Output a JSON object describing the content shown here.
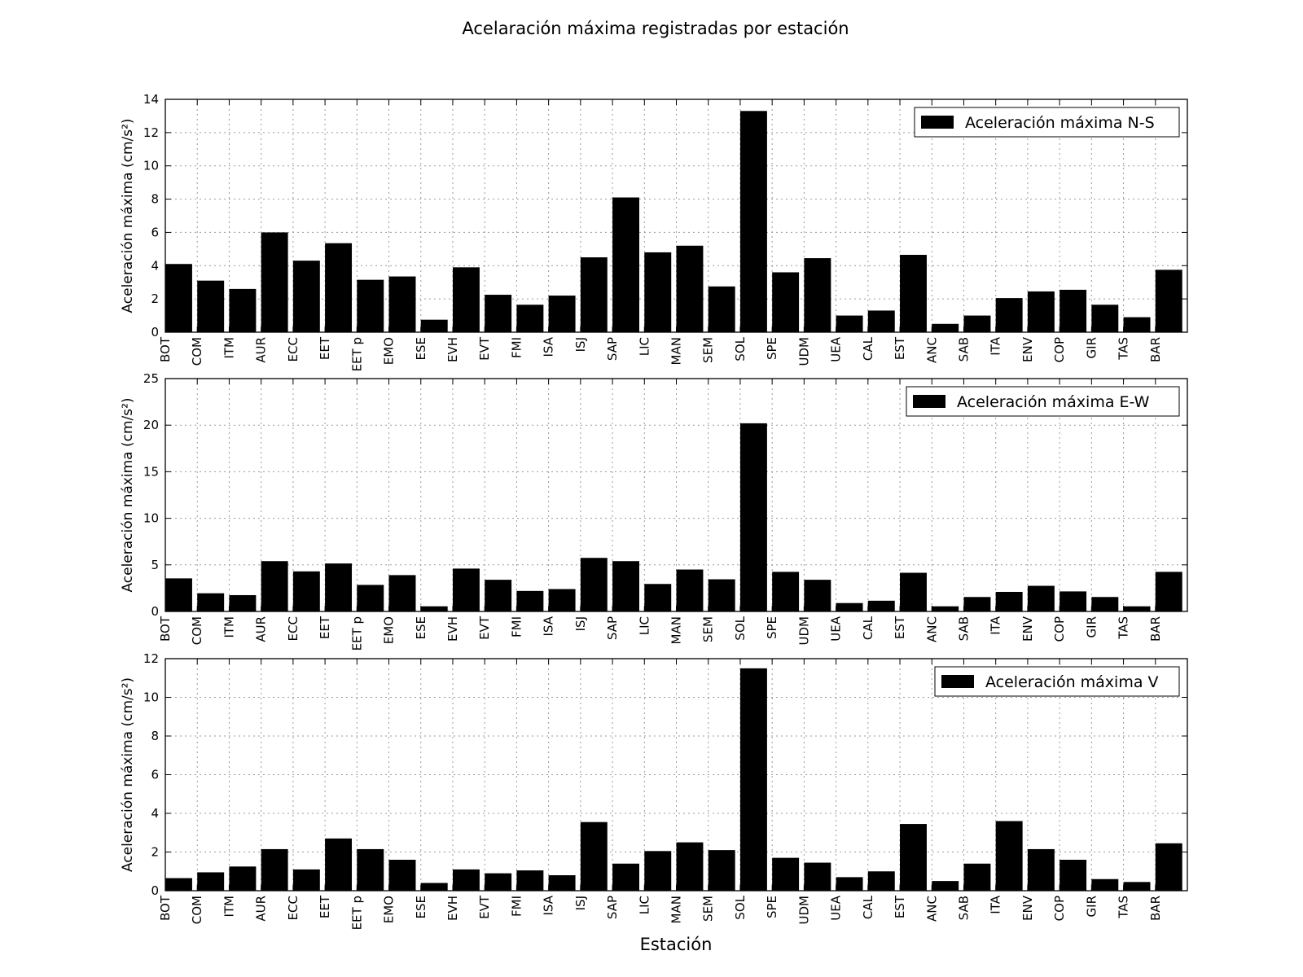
{
  "figure": {
    "title": "Acelaración máxima registradas por estación",
    "xlabel": "Estación"
  },
  "colors": {
    "bar": "#000000",
    "grid": "#9a9a9a",
    "axis": "#000000",
    "background": "#ffffff"
  },
  "chart_data": [
    {
      "type": "bar",
      "title": "",
      "xlabel": "",
      "ylabel": "Aceleración máxima (cm/s²)",
      "ylim": [
        0,
        14
      ],
      "yticks": [
        0,
        2,
        4,
        6,
        8,
        10,
        12,
        14
      ],
      "grid": true,
      "legend_position": "top-right",
      "categories": [
        "BOT",
        "COM",
        "ITM",
        "AUR",
        "ECC",
        "EET",
        "EET p",
        "EMO",
        "ESE",
        "EVH",
        "EVT",
        "FMI",
        "ISA",
        "ISJ",
        "SAP",
        "LIC",
        "MAN",
        "SEM",
        "SOL",
        "SPE",
        "UDM",
        "UEA",
        "CAL",
        "EST",
        "ANC",
        "SAB",
        "ITA",
        "ENV",
        "COP",
        "GIR",
        "TAS",
        "BAR"
      ],
      "series": [
        {
          "name": "Aceleración máxima N-S",
          "values": [
            4.1,
            3.1,
            2.6,
            6.0,
            4.3,
            5.35,
            3.15,
            3.35,
            0.75,
            3.9,
            2.25,
            1.65,
            2.2,
            4.5,
            8.1,
            4.8,
            5.2,
            2.75,
            13.3,
            3.6,
            4.45,
            1.0,
            1.3,
            4.65,
            0.5,
            1.0,
            2.05,
            2.45,
            2.55,
            1.65,
            0.9,
            3.75
          ]
        }
      ]
    },
    {
      "type": "bar",
      "title": "",
      "xlabel": "",
      "ylabel": "Aceleración máxima (cm/s²)",
      "ylim": [
        0,
        25
      ],
      "yticks": [
        0,
        5,
        10,
        15,
        20,
        25
      ],
      "grid": true,
      "legend_position": "top-right",
      "categories": [
        "BOT",
        "COM",
        "ITM",
        "AUR",
        "ECC",
        "EET",
        "EET p",
        "EMO",
        "ESE",
        "EVH",
        "EVT",
        "FMI",
        "ISA",
        "ISJ",
        "SAP",
        "LIC",
        "MAN",
        "SEM",
        "SOL",
        "SPE",
        "UDM",
        "UEA",
        "CAL",
        "EST",
        "ANC",
        "SAB",
        "ITA",
        "ENV",
        "COP",
        "GIR",
        "TAS",
        "BAR"
      ],
      "series": [
        {
          "name": "Aceleración máxima E-W",
          "values": [
            3.55,
            1.95,
            1.75,
            5.4,
            4.3,
            5.15,
            2.85,
            3.9,
            0.55,
            4.6,
            3.4,
            2.2,
            2.4,
            5.75,
            5.4,
            2.95,
            4.5,
            3.45,
            20.2,
            4.25,
            3.4,
            0.9,
            1.15,
            4.15,
            0.55,
            1.55,
            2.1,
            2.75,
            2.15,
            1.55,
            0.55,
            4.25
          ]
        }
      ]
    },
    {
      "type": "bar",
      "title": "",
      "xlabel": "Estación",
      "ylabel": "Aceleración máxima (cm/s²)",
      "ylim": [
        0,
        12
      ],
      "yticks": [
        0,
        2,
        4,
        6,
        8,
        10,
        12
      ],
      "grid": true,
      "legend_position": "top-right",
      "categories": [
        "BOT",
        "COM",
        "ITM",
        "AUR",
        "ECC",
        "EET",
        "EET p",
        "EMO",
        "ESE",
        "EVH",
        "EVT",
        "FMI",
        "ISA",
        "ISJ",
        "SAP",
        "LIC",
        "MAN",
        "SEM",
        "SOL",
        "SPE",
        "UDM",
        "UEA",
        "CAL",
        "EST",
        "ANC",
        "SAB",
        "ITA",
        "ENV",
        "COP",
        "GIR",
        "TAS",
        "BAR"
      ],
      "series": [
        {
          "name": "Aceleración máxima V",
          "values": [
            0.65,
            0.95,
            1.25,
            2.15,
            1.1,
            2.7,
            2.15,
            1.6,
            0.4,
            1.1,
            0.9,
            1.05,
            0.8,
            3.55,
            1.4,
            2.05,
            2.5,
            2.1,
            11.5,
            1.7,
            1.45,
            0.7,
            1.0,
            3.45,
            0.5,
            1.4,
            3.6,
            2.15,
            1.6,
            0.6,
            0.45,
            2.45
          ]
        }
      ]
    }
  ]
}
